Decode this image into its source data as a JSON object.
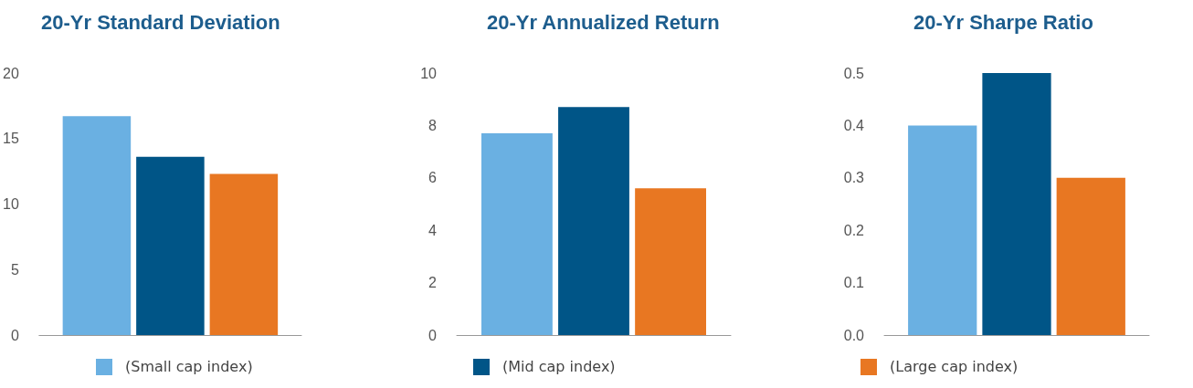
{
  "chart_data": [
    {
      "type": "bar",
      "title": "20-Yr Standard Deviation",
      "categories": [
        null
      ],
      "series": [
        {
          "name": "(Small cap index)",
          "color": "#6ab0e2",
          "values": [
            16.7
          ]
        },
        {
          "name": "(Mid cap index)",
          "color": "#005587",
          "values": [
            13.6
          ]
        },
        {
          "name": "(Large cap index)",
          "color": "#e87722",
          "values": [
            12.3
          ]
        }
      ],
      "ylim": [
        0,
        20
      ],
      "yticks": [
        0,
        5,
        10,
        15,
        20
      ],
      "grid": false,
      "legend": "bottom"
    },
    {
      "type": "bar",
      "title": "20-Yr Annualized Return",
      "categories": [
        null
      ],
      "series": [
        {
          "color": "#6ab0e2",
          "values": [
            7.7
          ]
        },
        {
          "color": "#005587",
          "values": [
            8.7
          ]
        },
        {
          "color": "#e87722",
          "values": [
            5.6
          ]
        }
      ],
      "ylim": [
        0,
        10
      ],
      "yticks": [
        0,
        2,
        4,
        6,
        8,
        10
      ],
      "grid": false
    },
    {
      "type": "bar",
      "title": "20-Yr Sharpe Ratio",
      "categories": [
        null
      ],
      "series": [
        {
          "color": "#6ab0e2",
          "values": [
            0.4
          ]
        },
        {
          "color": "#005587",
          "values": [
            0.5
          ]
        },
        {
          "color": "#e87722",
          "values": [
            0.3
          ]
        }
      ],
      "ylim": [
        0,
        0.5
      ],
      "yticks": [
        {
          "value": 0,
          "label": "0.0"
        },
        {
          "value": 0.1,
          "label": "0.1"
        },
        {
          "value": 0.2,
          "label": "0.2"
        },
        {
          "value": 0.3,
          "label": "0.3"
        },
        {
          "value": 0.4,
          "label": "0.4"
        },
        {
          "value": 0.5,
          "label": "0.5"
        }
      ],
      "grid": false
    }
  ]
}
